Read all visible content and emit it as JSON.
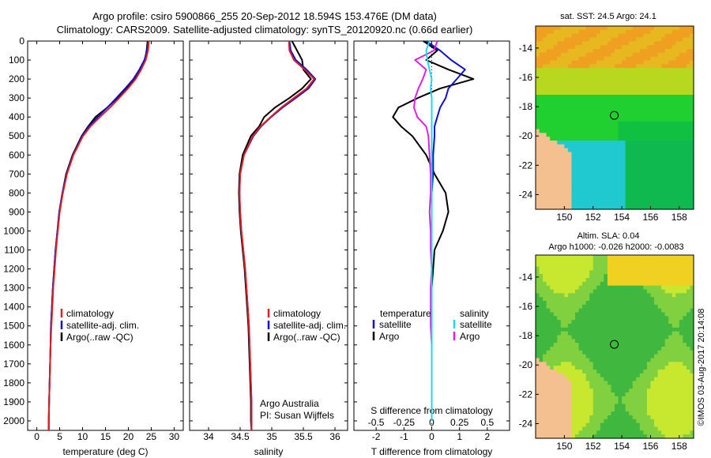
{
  "header": {
    "title_line1": "Argo profile: csiro 5900866_255 20-Sep-2012 18.594S 153.476E (DM data)",
    "title_line2": "Climatology: CARS2009. Satellite-adjusted climatology: synTS_20120920.nc (0.66d earlier)"
  },
  "colors": {
    "climatology": "#e02020",
    "satellite": "#1010d0",
    "argo": "#000000",
    "sat_salinity": "#20d8e8",
    "argo_salinity": "#e020e0",
    "land": "#f5c090"
  },
  "chart_data": [
    {
      "type": "line",
      "id": "temperature",
      "xlabel": "temperature (deg C)",
      "xlim": [
        -2,
        32
      ],
      "xticks": [
        "0",
        "5",
        "10",
        "15",
        "20",
        "25",
        "30"
      ],
      "ylim": [
        0,
        2050
      ],
      "yticks": [
        "0",
        "100",
        "200",
        "300",
        "400",
        "500",
        "600",
        "700",
        "800",
        "900",
        "1000",
        "1100",
        "1200",
        "1300",
        "1400",
        "1500",
        "1600",
        "1700",
        "1800",
        "1900",
        "2000"
      ],
      "depth": [
        0,
        50,
        100,
        150,
        200,
        250,
        300,
        350,
        400,
        450,
        500,
        600,
        700,
        800,
        900,
        1000,
        1100,
        1200,
        1300,
        1400,
        1500,
        1600,
        1700,
        1800,
        1900,
        2000,
        2050
      ],
      "series": [
        {
          "name": "climatology",
          "color": "#e02020",
          "values": [
            24.5,
            24.3,
            23.8,
            22.8,
            21.6,
            19.9,
            18.0,
            16.0,
            13.8,
            11.7,
            10.1,
            8.0,
            6.6,
            5.7,
            5.0,
            4.6,
            4.2,
            3.9,
            3.6,
            3.4,
            3.2,
            3.0,
            2.9,
            2.8,
            2.7,
            2.6,
            2.6
          ]
        },
        {
          "name": "satellite-adj. clim.",
          "color": "#1010d0",
          "values": [
            24.3,
            24.1,
            23.5,
            22.4,
            21.1,
            19.3,
            17.4,
            15.4,
            13.3,
            11.4,
            9.9,
            7.9,
            6.5,
            5.6,
            4.9,
            4.5,
            4.1,
            3.8,
            3.5,
            3.3,
            3.1,
            3.0,
            2.9,
            2.8,
            2.7,
            2.6,
            2.6
          ]
        },
        {
          "name": "Argo(..raw -QC)",
          "color": "#000000",
          "values": [
            24.2,
            24.0,
            23.6,
            22.6,
            21.3,
            19.6,
            17.6,
            15.4,
            12.8,
            11.2,
            9.8,
            7.8,
            6.4,
            5.6,
            4.9,
            4.5,
            4.1,
            3.8,
            3.5,
            3.3,
            3.1,
            3.0,
            2.9,
            2.8,
            2.7,
            2.6,
            2.6
          ]
        }
      ],
      "legend": [
        "climatology",
        "satellite-adj. clim.",
        "Argo(..raw -QC)"
      ]
    },
    {
      "type": "line",
      "id": "salinity",
      "xlabel": "salinity",
      "xlim": [
        33.7,
        36.2
      ],
      "xticks": [
        "34",
        "34.5",
        "35",
        "35.5",
        "36"
      ],
      "ylim": [
        0,
        2050
      ],
      "depth": [
        0,
        50,
        100,
        150,
        200,
        250,
        300,
        350,
        400,
        450,
        500,
        600,
        700,
        800,
        900,
        1000,
        1100,
        1200,
        1300,
        1400,
        1500,
        1600,
        1700,
        1800,
        1900,
        2000,
        2050
      ],
      "series": [
        {
          "name": "climatology",
          "color": "#e02020",
          "values": [
            35.27,
            35.28,
            35.35,
            35.52,
            35.67,
            35.55,
            35.35,
            35.15,
            34.98,
            34.82,
            34.7,
            34.56,
            34.5,
            34.49,
            34.5,
            34.52,
            34.55,
            34.58,
            34.6,
            34.62,
            34.64,
            34.65,
            34.66,
            34.67,
            34.68,
            34.68,
            34.68
          ]
        },
        {
          "name": "satellite-adj. clim.",
          "color": "#1010d0",
          "values": [
            35.28,
            35.3,
            35.38,
            35.55,
            35.69,
            35.58,
            35.38,
            35.17,
            34.99,
            34.83,
            34.71,
            34.56,
            34.5,
            34.49,
            34.5,
            34.52,
            34.55,
            34.58,
            34.6,
            34.62,
            34.64,
            34.65,
            34.66,
            34.67,
            34.68,
            34.68,
            34.68
          ]
        },
        {
          "name": "Argo(..raw -QC)",
          "color": "#000000",
          "values": [
            35.32,
            35.4,
            35.48,
            35.5,
            35.62,
            35.48,
            35.28,
            35.05,
            34.88,
            34.8,
            34.67,
            34.54,
            34.49,
            34.48,
            34.49,
            34.51,
            34.54,
            34.57,
            34.59,
            34.61,
            34.63,
            34.64,
            34.65,
            34.66,
            34.67,
            34.67,
            34.68
          ]
        }
      ],
      "legend": [
        "climatology",
        "satellite-adj. clim.",
        "Argo(..raw -QC)"
      ],
      "annotation": [
        "Argo Australia",
        "PI: Susan Wijffels"
      ]
    },
    {
      "type": "line",
      "id": "differences",
      "xlabel_top": "S difference from climatology",
      "xticks_top": [
        "-0.5",
        "-0.25",
        "0",
        "0.25",
        "0.5"
      ],
      "xlabel": "T difference from climatology",
      "xticks": [
        "-2",
        "-1",
        "0",
        "1",
        "2"
      ],
      "xlim": [
        -2.8,
        2.8
      ],
      "ylim": [
        0,
        2050
      ],
      "depth": [
        0,
        50,
        100,
        150,
        200,
        250,
        300,
        350,
        400,
        450,
        500,
        600,
        700,
        800,
        900,
        1000,
        1100,
        1200,
        1300,
        1400,
        1500,
        1600,
        1700,
        1800,
        1900,
        2000
      ],
      "series": [
        {
          "name": "T satellite",
          "color": "#1010d0",
          "values": [
            -0.2,
            0.3,
            0.7,
            1.2,
            0.9,
            0.6,
            0.5,
            0.3,
            0.2,
            0.1,
            0.1,
            0.05,
            0.05,
            0.0,
            0.0,
            0.0,
            0.0,
            0.0,
            0.0,
            0.0,
            0.0,
            0.0,
            0.0,
            0.0,
            0.0,
            0.0
          ]
        },
        {
          "name": "T Argo",
          "color": "#000000",
          "values": [
            -0.3,
            0.2,
            -0.2,
            0.6,
            1.5,
            0.3,
            -0.5,
            -1.2,
            -1.4,
            -1.1,
            -0.7,
            -0.2,
            0.1,
            0.5,
            0.6,
            0.4,
            0.1,
            0.05,
            0.0,
            0.0,
            0.0,
            0.0,
            0.0,
            0.0,
            0.0,
            0.0
          ]
        },
        {
          "name": "S satellite",
          "color": "#20d8e8",
          "values": [
            -0.02,
            -0.05,
            -0.04,
            -0.02,
            0.0,
            -0.01,
            0.0,
            0.0,
            0.0,
            0.0,
            0.0,
            0.0,
            0.0,
            0.0,
            0.0,
            0.0,
            0.0,
            0.0,
            0.0,
            0.0,
            0.0,
            0.0,
            0.0,
            0.0,
            0.0,
            0.0
          ]
        },
        {
          "name": "S Argo",
          "color": "#e020e0",
          "values": [
            0.05,
            0.02,
            -0.15,
            -0.05,
            -0.08,
            -0.12,
            -0.15,
            -0.16,
            -0.13,
            -0.05,
            -0.03,
            -0.02,
            -0.01,
            -0.01,
            -0.02,
            -0.01,
            -0.01,
            0.0,
            -0.01,
            -0.01,
            -0.01,
            0.0,
            0.0,
            0.0,
            0.0,
            0.0
          ]
        }
      ],
      "legend_left": {
        "title": "temperature",
        "items": [
          "satellite",
          "Argo"
        ]
      },
      "legend_right": {
        "title": "salinity",
        "items": [
          "satellite",
          "Argo"
        ]
      }
    },
    {
      "type": "heatmap",
      "id": "sst-map",
      "title": "sat. SST: 24.5 Argo: 24.1",
      "xticks": [
        "150",
        "152",
        "154",
        "156",
        "158"
      ],
      "yticks": [
        "-14",
        "-16",
        "-18",
        "-20",
        "-22",
        "-24"
      ],
      "xlim": [
        148,
        159
      ],
      "ylim": [
        -25,
        -12.5
      ]
    },
    {
      "type": "heatmap",
      "id": "sla-map",
      "title_line1": "Altim. SLA: 0.04",
      "title_line2": "Argo h1000: -0.026 h2000: -0.0083",
      "xticks": [
        "150",
        "152",
        "154",
        "156",
        "158"
      ],
      "yticks": [
        "-14",
        "-16",
        "-18",
        "-20",
        "-22",
        "-24"
      ],
      "xlim": [
        148,
        159
      ],
      "ylim": [
        -25,
        -12.5
      ]
    }
  ],
  "watermark": "©IMOS 03-Aug-2017 20:14:08"
}
